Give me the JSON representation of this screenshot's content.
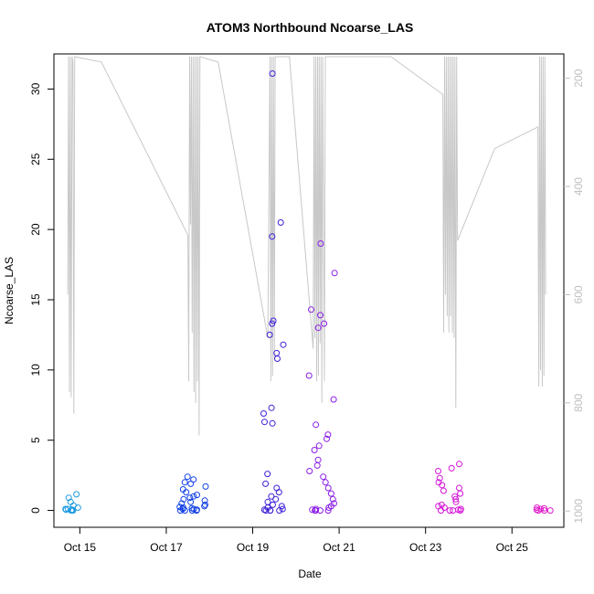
{
  "chart_data": {
    "type": "scatter",
    "title": "ATOM3 Northbound Ncoarse_LAS",
    "xlabel": "Date",
    "ylabel": "Ncoarse_LAS",
    "x_ticks": [
      "Oct 15",
      "Oct 17",
      "Oct 19",
      "Oct 21",
      "Oct 23",
      "Oct 25"
    ],
    "x_tick_days": [
      15,
      17,
      19,
      21,
      23,
      25
    ],
    "x_range_days": [
      14.4,
      26.2
    ],
    "ylim": [
      -1.2,
      32.5
    ],
    "y_ticks": [
      0,
      5,
      10,
      15,
      20,
      25,
      30
    ],
    "y2_ticks": [
      200,
      400,
      600,
      800,
      1000
    ],
    "y2_range": [
      1030,
      155
    ],
    "grid": false,
    "legend": "none",
    "series_colors": [
      "#1e9be0",
      "#1240e6",
      "#3d20d8",
      "#8a1ee6",
      "#d414d8",
      "#e01ccc"
    ],
    "right_series_color": "#c8c8c8",
    "groups": [
      {
        "day": 14.82,
        "spread": 0.18,
        "values": [
          0,
          0,
          0.05,
          0.1,
          0,
          0.05,
          0.1,
          0.2,
          0.35,
          0.6,
          0.9,
          1.15
        ],
        "color": "#1e9be0"
      },
      {
        "day": 17.6,
        "spread": 0.32,
        "values": [
          0,
          0,
          0,
          0,
          0.05,
          0.1,
          0.1,
          0.15,
          0.2,
          0.25,
          0.3,
          0.4,
          0.5,
          0.6,
          0.7,
          0.8,
          0.9,
          1.0,
          1.1,
          1.3,
          1.5,
          1.7,
          1.9,
          2.0,
          2.2,
          2.4
        ],
        "color": "#1240e6"
      },
      {
        "day": 19.48,
        "spread": 0.25,
        "values": [
          0,
          0,
          0,
          0,
          0.05,
          0.1,
          0.2,
          0.3,
          0.4,
          0.6,
          0.8,
          1.0,
          1.3,
          1.6,
          1.9,
          2.6,
          6.2,
          6.3,
          6.9,
          7.3,
          10.8,
          11.2,
          11.8,
          12.5,
          13.3,
          13.5,
          19.5,
          20.5,
          31.1
        ],
        "color": "#3d20d8"
      },
      {
        "day": 20.6,
        "spread": 0.3,
        "values": [
          0,
          0,
          0,
          0,
          0.05,
          0.1,
          0.2,
          0.3,
          0.5,
          0.8,
          1.2,
          1.6,
          2.0,
          2.4,
          2.8,
          3.2,
          3.6,
          4.3,
          4.6,
          5.1,
          5.4,
          6.1,
          7.9,
          9.6,
          13.0,
          13.3,
          13.9,
          14.3,
          16.9,
          19.0
        ],
        "color": "#8a1ee6"
      },
      {
        "day": 23.58,
        "spread": 0.3,
        "values": [
          0,
          0,
          0,
          0,
          0.05,
          0.1,
          0.2,
          0.3,
          0.4,
          0.6,
          0.8,
          1.0,
          1.2,
          1.4,
          1.6,
          1.8,
          2.0,
          2.3,
          2.8,
          3.0,
          3.3
        ],
        "color": "#d414d8"
      },
      {
        "day": 25.75,
        "spread": 0.2,
        "values": [
          0,
          0,
          0,
          0.05,
          0.1,
          0.15,
          0.2
        ],
        "color": "#e01ccc"
      }
    ],
    "right_series": {
      "comment_free_points": true,
      "points": [
        [
          14.72,
          600
        ],
        [
          14.74,
          160
        ],
        [
          14.76,
          780
        ],
        [
          14.78,
          160
        ],
        [
          14.8,
          790
        ],
        [
          14.82,
          160
        ],
        [
          14.84,
          170
        ],
        [
          14.86,
          820
        ],
        [
          14.88,
          160
        ],
        [
          15.5,
          170
        ],
        [
          17.5,
          490
        ],
        [
          17.52,
          760
        ],
        [
          17.54,
          160
        ],
        [
          17.56,
          470
        ],
        [
          17.58,
          160
        ],
        [
          17.6,
          670
        ],
        [
          17.62,
          160
        ],
        [
          17.64,
          780
        ],
        [
          17.66,
          160
        ],
        [
          17.68,
          800
        ],
        [
          17.7,
          160
        ],
        [
          17.72,
          760
        ],
        [
          17.74,
          160
        ],
        [
          17.76,
          860
        ],
        [
          17.78,
          160
        ],
        [
          18.2,
          170
        ],
        [
          19.35,
          680
        ],
        [
          19.4,
          160
        ],
        [
          19.42,
          760
        ],
        [
          19.44,
          160
        ],
        [
          19.46,
          750
        ],
        [
          19.48,
          160
        ],
        [
          19.5,
          720
        ],
        [
          19.52,
          160
        ],
        [
          19.85,
          160
        ],
        [
          20.4,
          700
        ],
        [
          20.42,
          160
        ],
        [
          20.44,
          680
        ],
        [
          20.46,
          160
        ],
        [
          20.48,
          760
        ],
        [
          20.5,
          160
        ],
        [
          20.52,
          750
        ],
        [
          20.54,
          160
        ],
        [
          20.56,
          690
        ],
        [
          20.58,
          160
        ],
        [
          20.6,
          800
        ],
        [
          20.62,
          160
        ],
        [
          20.66,
          760
        ],
        [
          20.68,
          160
        ],
        [
          22.2,
          160
        ],
        [
          23.4,
          230
        ],
        [
          23.42,
          670
        ],
        [
          23.44,
          160
        ],
        [
          23.46,
          600
        ],
        [
          23.48,
          160
        ],
        [
          23.5,
          640
        ],
        [
          23.52,
          160
        ],
        [
          23.54,
          670
        ],
        [
          23.56,
          160
        ],
        [
          23.58,
          640
        ],
        [
          23.6,
          160
        ],
        [
          23.62,
          670
        ],
        [
          23.64,
          160
        ],
        [
          23.66,
          680
        ],
        [
          23.68,
          160
        ],
        [
          23.7,
          810
        ],
        [
          23.72,
          160
        ],
        [
          23.74,
          500
        ],
        [
          24.6,
          330
        ],
        [
          25.6,
          290
        ],
        [
          25.62,
          770
        ],
        [
          25.64,
          160
        ],
        [
          25.66,
          740
        ],
        [
          25.68,
          160
        ],
        [
          25.7,
          770
        ],
        [
          25.72,
          160
        ],
        [
          25.74,
          750
        ],
        [
          25.76,
          160
        ],
        [
          25.78,
          600
        ]
      ]
    }
  }
}
